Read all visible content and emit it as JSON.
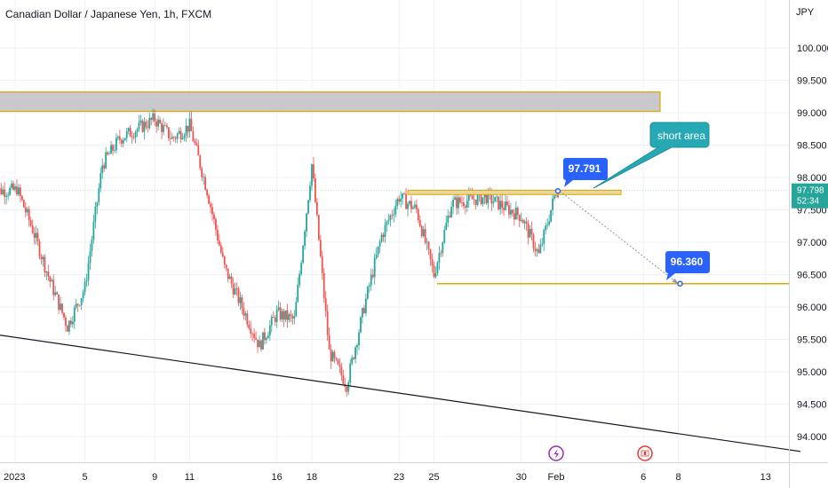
{
  "header": {
    "title": "Canadian Dollar / Japanese Yen, 1h, FXCM"
  },
  "colors": {
    "up": "#26a69a",
    "down": "#ef5350",
    "callout_blue": "#2962ff",
    "note_teal": "#26a9b5",
    "level_line": "#e0a800",
    "grid": "#eef1f4",
    "trend_line": "#131722"
  },
  "chart_data": {
    "type": "candlestick",
    "symbol": "CADJPY",
    "timeframe": "1h",
    "currency_label": "JPY",
    "y_ticks": [
      "100.000",
      "99.500",
      "99.000",
      "98.500",
      "98.000",
      "97.500",
      "97.000",
      "96.500",
      "96.000",
      "95.500",
      "95.000",
      "94.500",
      "94.000"
    ],
    "ylim": [
      93.75,
      100.35
    ],
    "x_ticks": [
      "2023",
      "5",
      "9",
      "11",
      "16",
      "18",
      "23",
      "25",
      "30",
      "Feb",
      "6",
      "8",
      "13"
    ],
    "price_path": [
      [
        "2023-01-01",
        97.9
      ],
      [
        "2023-01-02",
        97.2
      ],
      [
        "2023-01-03",
        96.4
      ],
      [
        "2023-01-04",
        95.7
      ],
      [
        "2023-01-05",
        96.3
      ],
      [
        "2023-01-06",
        98.2
      ],
      [
        "2023-01-07",
        98.6
      ],
      [
        "2023-01-09",
        98.9
      ],
      [
        "2023-01-10",
        98.6
      ],
      [
        "2023-01-11",
        98.8
      ],
      [
        "2023-01-12",
        97.8
      ],
      [
        "2023-01-13",
        96.6
      ],
      [
        "2023-01-15",
        95.4
      ],
      [
        "2023-01-16",
        95.9
      ],
      [
        "2023-01-17",
        95.8
      ],
      [
        "2023-01-18",
        98.2
      ],
      [
        "2023-01-19",
        95.3
      ],
      [
        "2023-01-20",
        94.8
      ],
      [
        "2023-01-21",
        96.0
      ],
      [
        "2023-01-22",
        97.1
      ],
      [
        "2023-01-23",
        97.7
      ],
      [
        "2023-01-24",
        97.5
      ],
      [
        "2023-01-25",
        96.5
      ],
      [
        "2023-01-26",
        97.6
      ],
      [
        "2023-01-28",
        97.7
      ],
      [
        "2023-01-30",
        97.4
      ],
      [
        "2023-01-31",
        96.8
      ],
      [
        "2023-02-01",
        97.8
      ]
    ],
    "last_price": "97.798",
    "countdown": "52:34",
    "current_price_label": "97.500",
    "resistance_zone": [
      99.02,
      99.32
    ],
    "horizontal_levels": [
      97.77,
      96.36
    ],
    "trend_line": {
      "from": [
        "2022-12-30",
        95.61
      ],
      "to": [
        "2023-02-15",
        93.77
      ]
    },
    "projection_arrow": {
      "from": [
        "2023-02-01",
        97.791
      ],
      "to": [
        "2023-02-08",
        96.36
      ]
    },
    "callouts": [
      {
        "label": "97.791",
        "value": 97.791
      },
      {
        "label": "96.360",
        "value": 96.36
      }
    ],
    "note": "short area",
    "event_markers": [
      {
        "date": "2023-02-01",
        "icon": "lightning-icon"
      },
      {
        "date": "2023-02-08",
        "icon": "canada-flag-icon"
      }
    ],
    "grid": true
  }
}
